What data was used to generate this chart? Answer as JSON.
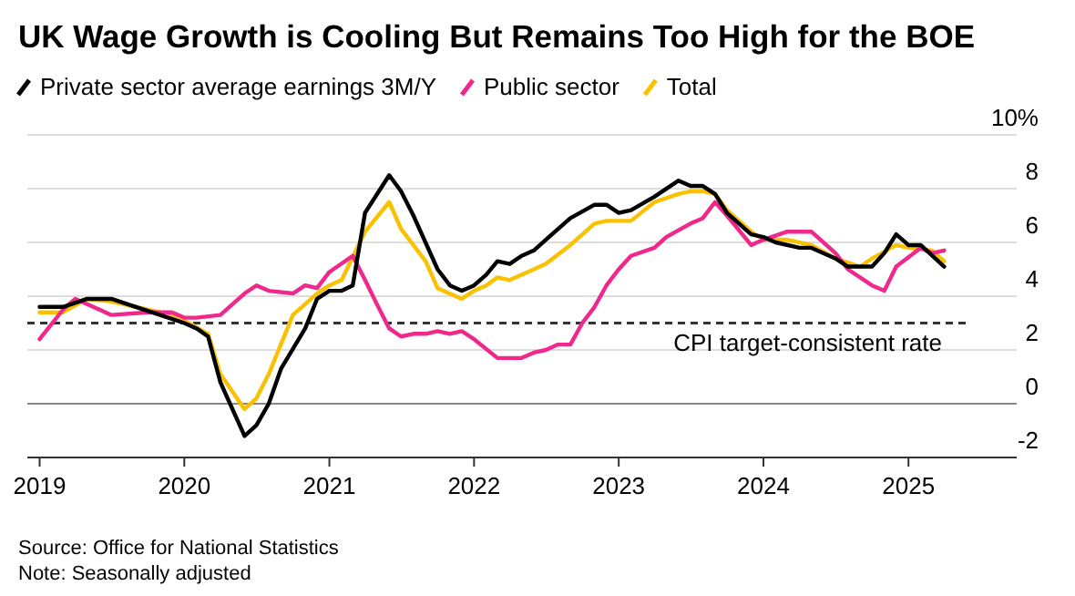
{
  "chart_data": {
    "type": "line",
    "title": "UK Wage Growth is Cooling But Remains Too High for the BOE",
    "legend": "top left",
    "grid": "y",
    "ylim": [
      -2,
      10
    ],
    "yticks": [
      {
        "value": 10,
        "label": "10%"
      },
      8,
      6,
      4,
      2,
      0,
      -2
    ],
    "xlim": [
      "2018-12",
      "2025-10"
    ],
    "xticks": [
      {
        "value": "2019-01",
        "label": "2019"
      },
      {
        "value": "2020-01",
        "label": "2020"
      },
      {
        "value": "2021-01",
        "label": "2021"
      },
      {
        "value": "2022-01",
        "label": "2022"
      },
      {
        "value": "2023-01",
        "label": "2023"
      },
      {
        "value": "2024-01",
        "label": "2024"
      },
      {
        "value": "2025-01",
        "label": "2025"
      }
    ],
    "ref_lines": [
      {
        "axis": "y",
        "value": 3,
        "label": "CPI target-consistent rate",
        "color": "#333333",
        "line_style": "dashed"
      }
    ],
    "series": [
      {
        "name": "Private sector average earnings 3M/Y",
        "color": "#000000",
        "x": [
          "2019-01",
          "2019-03",
          "2019-05",
          "2019-07",
          "2019-09",
          "2019-11",
          "2020-01",
          "2020-02",
          "2020-03",
          "2020-04",
          "2020-06",
          "2020-07",
          "2020-08",
          "2020-09",
          "2020-11",
          "2020-12",
          "2021-01",
          "2021-02",
          "2021-03",
          "2021-04",
          "2021-06",
          "2021-07",
          "2021-08",
          "2021-10",
          "2021-11",
          "2021-12",
          "2022-01",
          "2022-02",
          "2022-03",
          "2022-04",
          "2022-05",
          "2022-06",
          "2022-07",
          "2022-09",
          "2022-11",
          "2022-12",
          "2023-01",
          "2023-02",
          "2023-04",
          "2023-06",
          "2023-07",
          "2023-08",
          "2023-09",
          "2023-10",
          "2023-12",
          "2024-01",
          "2024-02",
          "2024-04",
          "2024-05",
          "2024-07",
          "2024-08",
          "2024-10",
          "2024-11",
          "2024-12",
          "2025-01",
          "2025-02",
          "2025-04"
        ],
        "values": [
          3.6,
          3.6,
          3.9,
          3.9,
          3.6,
          3.3,
          3.0,
          2.8,
          2.5,
          0.8,
          -1.2,
          -0.8,
          0,
          1.3,
          2.8,
          3.9,
          4.2,
          4.2,
          4.4,
          7.1,
          8.5,
          7.9,
          7.0,
          5.0,
          4.4,
          4.2,
          4.4,
          4.8,
          5.3,
          5.2,
          5.5,
          5.7,
          6.1,
          6.9,
          7.4,
          7.4,
          7.1,
          7.2,
          7.7,
          8.3,
          8.1,
          8.1,
          7.8,
          7.1,
          6.3,
          6.2,
          6.0,
          5.8,
          5.8,
          5.4,
          5.1,
          5.1,
          5.6,
          6.3,
          5.9,
          5.9,
          5.1
        ]
      },
      {
        "name": "Public sector",
        "color": "#f0288c",
        "x": [
          "2019-01",
          "2019-03",
          "2019-04",
          "2019-06",
          "2019-07",
          "2019-10",
          "2019-12",
          "2020-01",
          "2020-02",
          "2020-04",
          "2020-06",
          "2020-07",
          "2020-08",
          "2020-10",
          "2020-11",
          "2020-12",
          "2021-01",
          "2021-03",
          "2021-04",
          "2021-05",
          "2021-06",
          "2021-07",
          "2021-08",
          "2021-09",
          "2021-10",
          "2021-11",
          "2021-12",
          "2022-01",
          "2022-03",
          "2022-05",
          "2022-06",
          "2022-07",
          "2022-08",
          "2022-09",
          "2022-10",
          "2022-11",
          "2022-12",
          "2023-01",
          "2023-02",
          "2023-04",
          "2023-05",
          "2023-07",
          "2023-08",
          "2023-09",
          "2023-10",
          "2023-12",
          "2024-01",
          "2024-03",
          "2024-04",
          "2024-05",
          "2024-07",
          "2024-08",
          "2024-10",
          "2024-11",
          "2024-12",
          "2025-02",
          "2025-03",
          "2025-04"
        ],
        "values": [
          2.4,
          3.5,
          3.9,
          3.5,
          3.3,
          3.4,
          3.4,
          3.2,
          3.2,
          3.3,
          4.1,
          4.4,
          4.2,
          4.1,
          4.4,
          4.3,
          4.9,
          5.5,
          4.6,
          3.7,
          2.8,
          2.5,
          2.6,
          2.6,
          2.7,
          2.6,
          2.7,
          2.4,
          1.7,
          1.7,
          1.9,
          2.0,
          2.2,
          2.2,
          3.0,
          3.6,
          4.4,
          5.0,
          5.5,
          5.8,
          6.2,
          6.7,
          6.9,
          7.5,
          7.0,
          5.9,
          6.1,
          6.4,
          6.4,
          6.4,
          5.6,
          5.0,
          4.4,
          4.2,
          5.1,
          5.8,
          5.6,
          5.7
        ]
      },
      {
        "name": "Total",
        "color": "#f9c100",
        "x": [
          "2019-01",
          "2019-03",
          "2019-05",
          "2019-07",
          "2019-10",
          "2019-12",
          "2020-01",
          "2020-03",
          "2020-04",
          "2020-06",
          "2020-07",
          "2020-08",
          "2020-10",
          "2020-12",
          "2021-01",
          "2021-02",
          "2021-04",
          "2021-06",
          "2021-07",
          "2021-09",
          "2021-10",
          "2021-12",
          "2022-01",
          "2022-02",
          "2022-03",
          "2022-04",
          "2022-06",
          "2022-07",
          "2022-09",
          "2022-11",
          "2022-12",
          "2023-02",
          "2023-04",
          "2023-06",
          "2023-07",
          "2023-08",
          "2023-09",
          "2023-10",
          "2023-12",
          "2024-01",
          "2024-03",
          "2024-05",
          "2024-07",
          "2024-09",
          "2024-10",
          "2024-12",
          "2025-01",
          "2025-03",
          "2025-04"
        ],
        "values": [
          3.4,
          3.4,
          3.9,
          3.8,
          3.5,
          3.3,
          3.1,
          2.6,
          1.1,
          -0.2,
          0.2,
          1.1,
          3.3,
          4.1,
          4.4,
          4.6,
          6.4,
          7.5,
          6.5,
          5.3,
          4.3,
          3.9,
          4.2,
          4.4,
          4.7,
          4.6,
          5.0,
          5.2,
          5.9,
          6.7,
          6.8,
          6.8,
          7.5,
          7.8,
          7.9,
          7.9,
          7.8,
          7.2,
          6.4,
          6.1,
          6.1,
          5.9,
          5.4,
          5.1,
          5.4,
          5.9,
          5.8,
          5.7,
          5.3
        ]
      }
    ],
    "annotations": [
      "Source: Office for National Statistics",
      "Note: Seasonally adjusted"
    ]
  }
}
